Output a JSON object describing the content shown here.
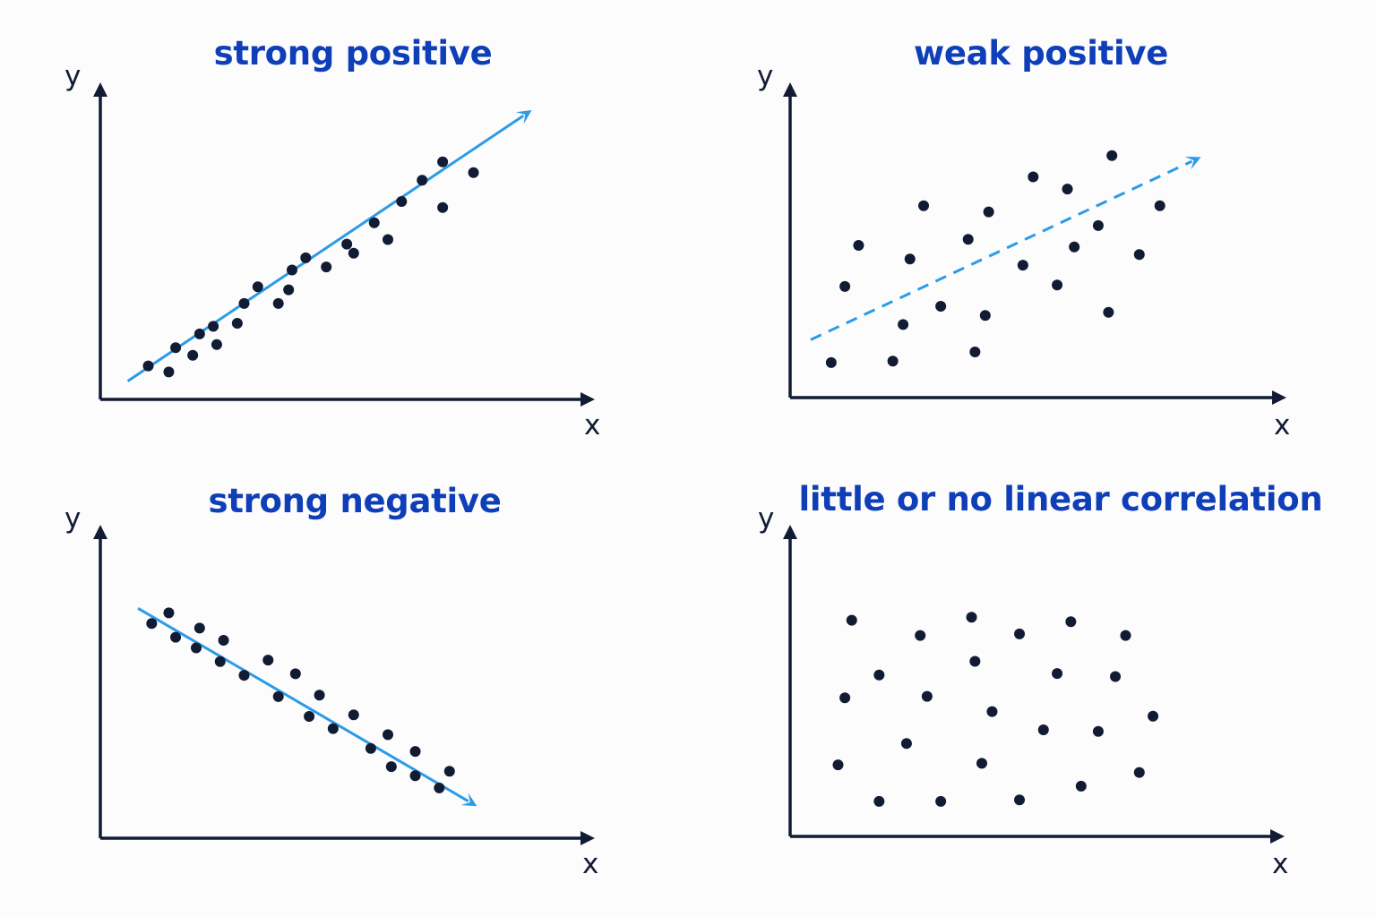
{
  "colors": {
    "background": "#fcfcfc",
    "title": "#0f3fb8",
    "axis": "#111b33",
    "point": "#111b33",
    "trend": "#2b9be8"
  },
  "chart_data": [
    {
      "type": "scatter",
      "title": "strong positive",
      "xlabel": "x",
      "ylabel": "y",
      "trend": {
        "style": "solid",
        "direction": "up",
        "from": [
          0.8,
          1.2
        ],
        "to": [
          12.6,
          19.0
        ]
      },
      "points": [
        [
          1.4,
          2.2
        ],
        [
          2.0,
          1.8
        ],
        [
          2.2,
          3.4
        ],
        [
          2.7,
          2.9
        ],
        [
          2.9,
          4.3
        ],
        [
          3.3,
          4.8
        ],
        [
          3.4,
          3.6
        ],
        [
          4.0,
          5.0
        ],
        [
          4.2,
          6.3
        ],
        [
          4.6,
          7.4
        ],
        [
          5.2,
          6.3
        ],
        [
          5.5,
          7.2
        ],
        [
          5.6,
          8.5
        ],
        [
          6.0,
          9.3
        ],
        [
          6.6,
          8.7
        ],
        [
          7.2,
          10.2
        ],
        [
          7.4,
          9.6
        ],
        [
          8.0,
          11.6
        ],
        [
          8.4,
          10.5
        ],
        [
          8.8,
          13.0
        ],
        [
          9.4,
          14.4
        ],
        [
          10.0,
          12.6
        ],
        [
          10.0,
          15.6
        ],
        [
          10.9,
          14.9
        ]
      ]
    },
    {
      "type": "scatter",
      "title": "weak positive",
      "xlabel": "x",
      "ylabel": "y",
      "trend": {
        "style": "dashed",
        "direction": "up",
        "from": [
          0.6,
          3.8
        ],
        "to": [
          12.0,
          15.8
        ]
      },
      "points": [
        [
          1.2,
          2.3
        ],
        [
          1.6,
          7.3
        ],
        [
          2.0,
          10.0
        ],
        [
          3.0,
          2.4
        ],
        [
          3.3,
          4.8
        ],
        [
          3.5,
          9.1
        ],
        [
          3.9,
          12.6
        ],
        [
          4.4,
          6.0
        ],
        [
          5.2,
          10.4
        ],
        [
          5.4,
          3.0
        ],
        [
          5.7,
          5.4
        ],
        [
          5.8,
          12.2
        ],
        [
          6.8,
          8.7
        ],
        [
          7.1,
          14.5
        ],
        [
          7.8,
          7.4
        ],
        [
          8.1,
          13.7
        ],
        [
          8.3,
          9.9
        ],
        [
          9.0,
          11.3
        ],
        [
          9.3,
          5.6
        ],
        [
          9.4,
          15.9
        ],
        [
          10.2,
          9.4
        ],
        [
          10.8,
          12.6
        ]
      ]
    },
    {
      "type": "scatter",
      "title": "strong negative",
      "xlabel": "x",
      "ylabel": "y",
      "trend": {
        "style": "solid",
        "direction": "down",
        "from": [
          1.1,
          15.1
        ],
        "to": [
          11.0,
          2.1
        ]
      },
      "points": [
        [
          1.5,
          14.1
        ],
        [
          2.0,
          14.8
        ],
        [
          2.2,
          13.2
        ],
        [
          2.8,
          12.5
        ],
        [
          2.9,
          13.8
        ],
        [
          3.5,
          11.6
        ],
        [
          3.6,
          13.0
        ],
        [
          4.2,
          10.7
        ],
        [
          4.9,
          11.7
        ],
        [
          5.2,
          9.3
        ],
        [
          5.7,
          10.8
        ],
        [
          6.1,
          8.0
        ],
        [
          6.4,
          9.4
        ],
        [
          6.8,
          7.2
        ],
        [
          7.4,
          8.1
        ],
        [
          7.9,
          5.9
        ],
        [
          8.4,
          6.8
        ],
        [
          8.5,
          4.7
        ],
        [
          9.2,
          4.1
        ],
        [
          9.2,
          5.7
        ],
        [
          9.9,
          3.3
        ],
        [
          10.2,
          4.4
        ]
      ]
    },
    {
      "type": "scatter",
      "title": "little or no linear correlation",
      "xlabel": "x",
      "ylabel": "y",
      "trend": null,
      "points": [
        [
          1.4,
          4.7
        ],
        [
          1.6,
          9.1
        ],
        [
          1.8,
          14.2
        ],
        [
          2.6,
          2.3
        ],
        [
          2.6,
          10.6
        ],
        [
          3.4,
          6.1
        ],
        [
          3.8,
          13.2
        ],
        [
          4.4,
          2.3
        ],
        [
          4.0,
          9.2
        ],
        [
          5.3,
          14.4
        ],
        [
          5.4,
          11.5
        ],
        [
          5.6,
          4.8
        ],
        [
          5.9,
          8.2
        ],
        [
          6.7,
          2.4
        ],
        [
          6.7,
          13.3
        ],
        [
          7.4,
          7.0
        ],
        [
          7.8,
          10.7
        ],
        [
          8.2,
          14.1
        ],
        [
          8.5,
          3.3
        ],
        [
          9.0,
          6.9
        ],
        [
          9.5,
          10.5
        ],
        [
          9.8,
          13.2
        ],
        [
          10.2,
          4.2
        ],
        [
          10.6,
          7.9
        ]
      ]
    }
  ]
}
